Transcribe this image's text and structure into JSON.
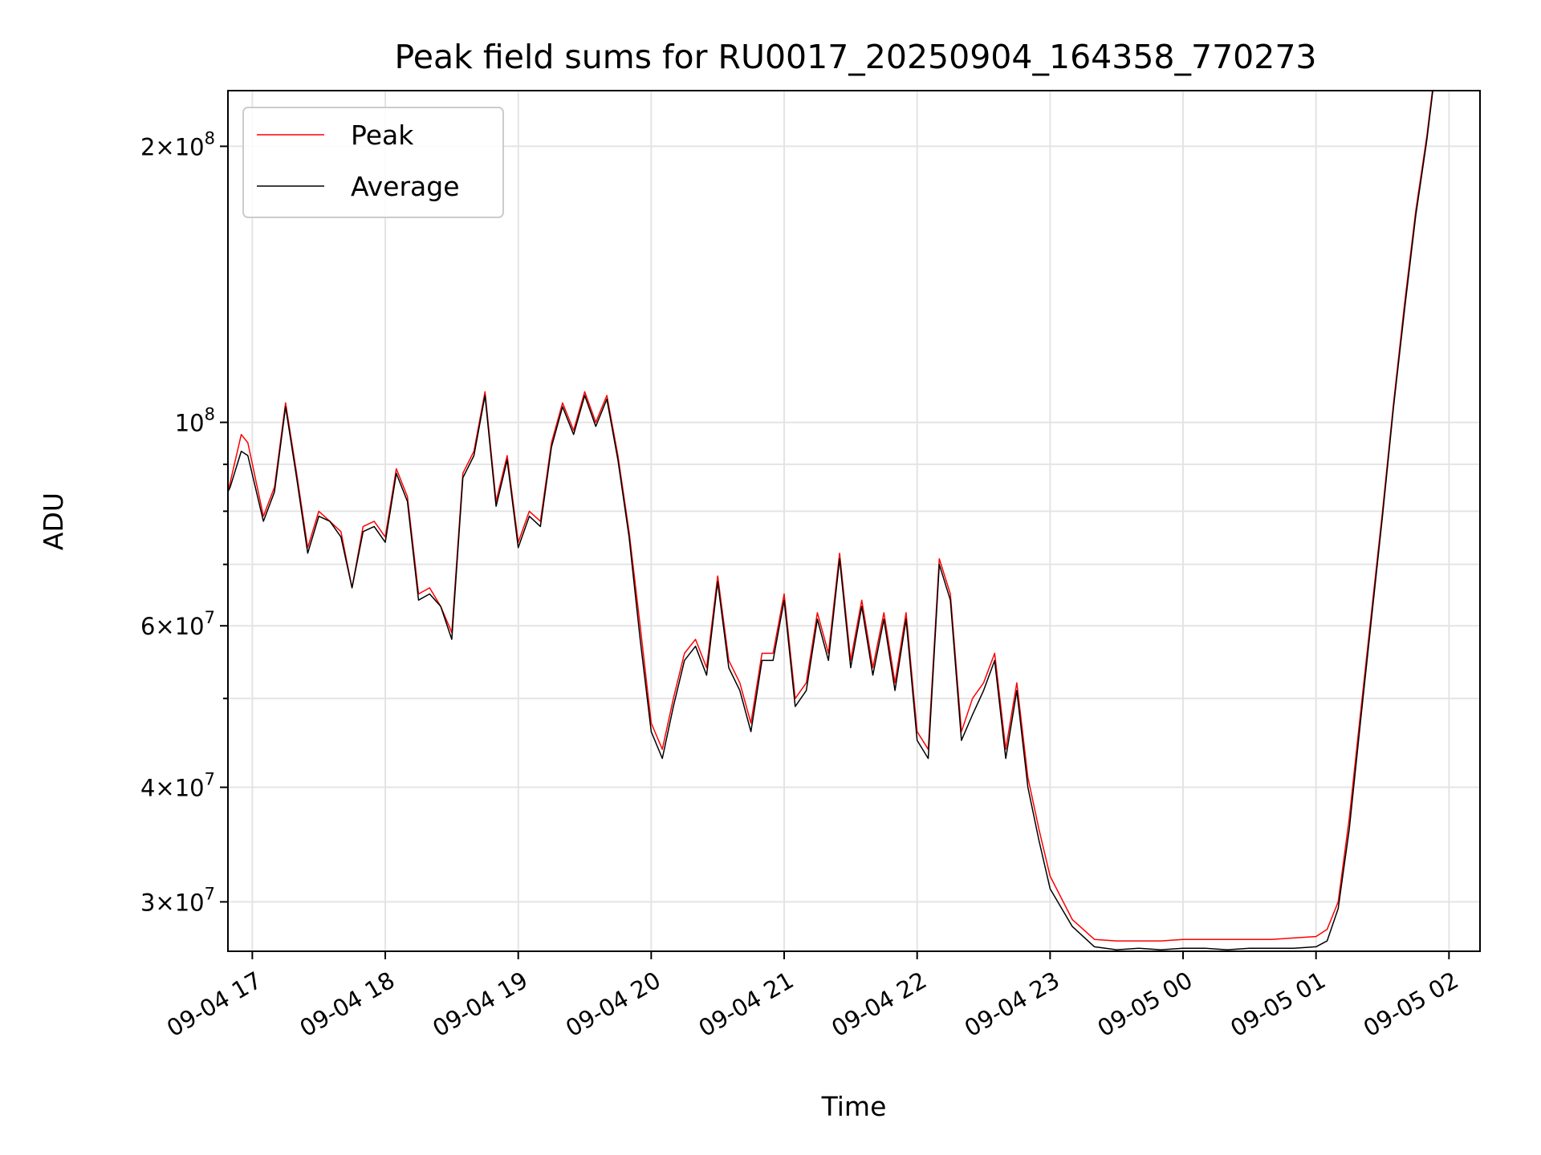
{
  "chart_data": {
    "type": "line",
    "title": "Peak field sums for RU0017_20250904_164358_770273",
    "xlabel": "Time",
    "ylabel": "ADU",
    "yscale": "log",
    "xlim": [
      "2025-09-04 16:49",
      "2025-09-05 02:14"
    ],
    "ylim": [
      26500000,
      230000000
    ],
    "grid": true,
    "legend_position": "upper left",
    "x_ticks": [
      "2025-09-04 17:00",
      "2025-09-04 18:00",
      "2025-09-04 19:00",
      "2025-09-04 20:00",
      "2025-09-04 21:00",
      "2025-09-04 22:00",
      "2025-09-04 23:00",
      "2025-09-05 00:00",
      "2025-09-05 01:00",
      "2025-09-05 02:00"
    ],
    "x_tick_labels": [
      "09-04 17",
      "09-04 18",
      "09-04 19",
      "09-04 20",
      "09-04 21",
      "09-04 22",
      "09-04 23",
      "09-05 00",
      "09-05 01",
      "09-05 02"
    ],
    "y_ticks": [
      30000000,
      40000000,
      60000000,
      100000000,
      200000000
    ],
    "y_tick_labels": [
      {
        "mant": "3",
        "exp": "7"
      },
      {
        "mant": "4",
        "exp": "7"
      },
      {
        "mant": "6",
        "exp": "7"
      },
      {
        "mant": "",
        "exp": "8"
      },
      {
        "mant": "2",
        "exp": "8"
      }
    ],
    "y_minor_ticks": [
      50000000,
      70000000,
      80000000,
      90000000
    ],
    "series": [
      {
        "name": "Peak",
        "color": "#ff0000",
        "x": [
          "2025-09-04 16:49",
          "2025-09-04 16:50",
          "2025-09-04 16:55",
          "2025-09-04 16:58",
          "2025-09-04 17:05",
          "2025-09-04 17:10",
          "2025-09-04 17:15",
          "2025-09-04 17:20",
          "2025-09-04 17:25",
          "2025-09-04 17:30",
          "2025-09-04 17:35",
          "2025-09-04 17:40",
          "2025-09-04 17:45",
          "2025-09-04 17:50",
          "2025-09-04 17:55",
          "2025-09-04 18:00",
          "2025-09-04 18:05",
          "2025-09-04 18:10",
          "2025-09-04 18:15",
          "2025-09-04 18:20",
          "2025-09-04 18:25",
          "2025-09-04 18:30",
          "2025-09-04 18:35",
          "2025-09-04 18:40",
          "2025-09-04 18:45",
          "2025-09-04 18:50",
          "2025-09-04 18:55",
          "2025-09-04 19:00",
          "2025-09-04 19:05",
          "2025-09-04 19:10",
          "2025-09-04 19:15",
          "2025-09-04 19:20",
          "2025-09-04 19:25",
          "2025-09-04 19:30",
          "2025-09-04 19:35",
          "2025-09-04 19:40",
          "2025-09-04 19:45",
          "2025-09-04 19:50",
          "2025-09-04 19:55",
          "2025-09-04 20:00",
          "2025-09-04 20:05",
          "2025-09-04 20:10",
          "2025-09-04 20:15",
          "2025-09-04 20:20",
          "2025-09-04 20:25",
          "2025-09-04 20:30",
          "2025-09-04 20:35",
          "2025-09-04 20:40",
          "2025-09-04 20:45",
          "2025-09-04 20:50",
          "2025-09-04 20:55",
          "2025-09-04 21:00",
          "2025-09-04 21:05",
          "2025-09-04 21:10",
          "2025-09-04 21:15",
          "2025-09-04 21:20",
          "2025-09-04 21:25",
          "2025-09-04 21:30",
          "2025-09-04 21:35",
          "2025-09-04 21:40",
          "2025-09-04 21:45",
          "2025-09-04 21:50",
          "2025-09-04 21:55",
          "2025-09-04 22:00",
          "2025-09-04 22:05",
          "2025-09-04 22:10",
          "2025-09-04 22:15",
          "2025-09-04 22:20",
          "2025-09-04 22:25",
          "2025-09-04 22:30",
          "2025-09-04 22:35",
          "2025-09-04 22:40",
          "2025-09-04 22:45",
          "2025-09-04 22:50",
          "2025-09-04 22:55",
          "2025-09-04 23:00",
          "2025-09-04 23:10",
          "2025-09-04 23:20",
          "2025-09-04 23:30",
          "2025-09-04 23:40",
          "2025-09-04 23:50",
          "2025-09-05 00:00",
          "2025-09-05 00:10",
          "2025-09-05 00:20",
          "2025-09-05 00:30",
          "2025-09-05 00:40",
          "2025-09-05 00:50",
          "2025-09-05 01:00",
          "2025-09-05 01:05",
          "2025-09-05 01:10",
          "2025-09-05 01:15",
          "2025-09-05 01:20",
          "2025-09-05 01:25",
          "2025-09-05 01:30",
          "2025-09-05 01:35",
          "2025-09-05 01:40",
          "2025-09-05 01:45",
          "2025-09-05 01:50",
          "2025-09-05 01:53"
        ],
        "values": [
          84000000,
          86000000,
          97000000,
          95000000,
          79000000,
          85000000,
          105000000,
          88000000,
          73000000,
          80000000,
          78000000,
          76000000,
          66000000,
          77000000,
          78000000,
          75000000,
          89000000,
          83000000,
          65000000,
          66000000,
          63000000,
          59000000,
          88000000,
          93000000,
          108000000,
          82000000,
          92000000,
          74000000,
          80000000,
          78000000,
          95000000,
          105000000,
          98000000,
          108000000,
          100000000,
          107000000,
          92000000,
          76000000,
          60000000,
          47000000,
          44000000,
          50000000,
          56000000,
          58000000,
          54000000,
          68000000,
          55000000,
          52000000,
          47000000,
          56000000,
          56000000,
          65000000,
          50000000,
          52000000,
          62000000,
          56000000,
          72000000,
          55000000,
          64000000,
          54000000,
          62000000,
          52000000,
          62000000,
          46000000,
          44000000,
          71000000,
          65000000,
          46000000,
          50000000,
          52000000,
          56000000,
          44000000,
          52000000,
          41000000,
          36000000,
          32000000,
          28700000,
          27300000,
          27200000,
          27200000,
          27200000,
          27300000,
          27300000,
          27300000,
          27300000,
          27300000,
          27400000,
          27500000,
          28000000,
          30000000,
          37000000,
          48000000,
          62000000,
          80000000,
          105000000,
          135000000,
          170000000,
          205000000,
          235000000
        ],
        "line_width": 1
      },
      {
        "name": "Average",
        "color": "#000000",
        "x": [
          "2025-09-04 16:49",
          "2025-09-04 16:50",
          "2025-09-04 16:55",
          "2025-09-04 16:58",
          "2025-09-04 17:05",
          "2025-09-04 17:10",
          "2025-09-04 17:15",
          "2025-09-04 17:20",
          "2025-09-04 17:25",
          "2025-09-04 17:30",
          "2025-09-04 17:35",
          "2025-09-04 17:40",
          "2025-09-04 17:45",
          "2025-09-04 17:50",
          "2025-09-04 17:55",
          "2025-09-04 18:00",
          "2025-09-04 18:05",
          "2025-09-04 18:10",
          "2025-09-04 18:15",
          "2025-09-04 18:20",
          "2025-09-04 18:25",
          "2025-09-04 18:30",
          "2025-09-04 18:35",
          "2025-09-04 18:40",
          "2025-09-04 18:45",
          "2025-09-04 18:50",
          "2025-09-04 18:55",
          "2025-09-04 19:00",
          "2025-09-04 19:05",
          "2025-09-04 19:10",
          "2025-09-04 19:15",
          "2025-09-04 19:20",
          "2025-09-04 19:25",
          "2025-09-04 19:30",
          "2025-09-04 19:35",
          "2025-09-04 19:40",
          "2025-09-04 19:45",
          "2025-09-04 19:50",
          "2025-09-04 19:55",
          "2025-09-04 20:00",
          "2025-09-04 20:05",
          "2025-09-04 20:10",
          "2025-09-04 20:15",
          "2025-09-04 20:20",
          "2025-09-04 20:25",
          "2025-09-04 20:30",
          "2025-09-04 20:35",
          "2025-09-04 20:40",
          "2025-09-04 20:45",
          "2025-09-04 20:50",
          "2025-09-04 20:55",
          "2025-09-04 21:00",
          "2025-09-04 21:05",
          "2025-09-04 21:10",
          "2025-09-04 21:15",
          "2025-09-04 21:20",
          "2025-09-04 21:25",
          "2025-09-04 21:30",
          "2025-09-04 21:35",
          "2025-09-04 21:40",
          "2025-09-04 21:45",
          "2025-09-04 21:50",
          "2025-09-04 21:55",
          "2025-09-04 22:00",
          "2025-09-04 22:05",
          "2025-09-04 22:10",
          "2025-09-04 22:15",
          "2025-09-04 22:20",
          "2025-09-04 22:25",
          "2025-09-04 22:30",
          "2025-09-04 22:35",
          "2025-09-04 22:40",
          "2025-09-04 22:45",
          "2025-09-04 22:50",
          "2025-09-04 22:55",
          "2025-09-04 23:00",
          "2025-09-04 23:10",
          "2025-09-04 23:20",
          "2025-09-04 23:30",
          "2025-09-04 23:40",
          "2025-09-04 23:50",
          "2025-09-05 00:00",
          "2025-09-05 00:10",
          "2025-09-05 00:20",
          "2025-09-05 00:30",
          "2025-09-05 00:40",
          "2025-09-05 00:50",
          "2025-09-05 01:00",
          "2025-09-05 01:05",
          "2025-09-05 01:10",
          "2025-09-05 01:15",
          "2025-09-05 01:20",
          "2025-09-05 01:25",
          "2025-09-05 01:30",
          "2025-09-05 01:35",
          "2025-09-05 01:40",
          "2025-09-05 01:45",
          "2025-09-05 01:50",
          "2025-09-05 01:53"
        ],
        "values": [
          84000000,
          85000000,
          93000000,
          92000000,
          78000000,
          84000000,
          104000000,
          87000000,
          72000000,
          79000000,
          78000000,
          75000000,
          66000000,
          76000000,
          77000000,
          74000000,
          88000000,
          82000000,
          64000000,
          65000000,
          63000000,
          58000000,
          87000000,
          92000000,
          107000000,
          81000000,
          91000000,
          73000000,
          79000000,
          77000000,
          94000000,
          104000000,
          97000000,
          107000000,
          99000000,
          106000000,
          91000000,
          75000000,
          58000000,
          46000000,
          43000000,
          49000000,
          55000000,
          57000000,
          53000000,
          67000000,
          54000000,
          51000000,
          46000000,
          55000000,
          55000000,
          64000000,
          49000000,
          51000000,
          61000000,
          55000000,
          71000000,
          54000000,
          63000000,
          53000000,
          61000000,
          51000000,
          61000000,
          45000000,
          43000000,
          70000000,
          64000000,
          45000000,
          48000000,
          51000000,
          55000000,
          43000000,
          51000000,
          40000000,
          35000000,
          31000000,
          28200000,
          26800000,
          26600000,
          26700000,
          26600000,
          26700000,
          26700000,
          26600000,
          26700000,
          26700000,
          26700000,
          26800000,
          27200000,
          29500000,
          36000000,
          47000000,
          61000000,
          79000000,
          104000000,
          133000000,
          168000000,
          203000000,
          233000000
        ],
        "line_width": 1
      }
    ]
  }
}
